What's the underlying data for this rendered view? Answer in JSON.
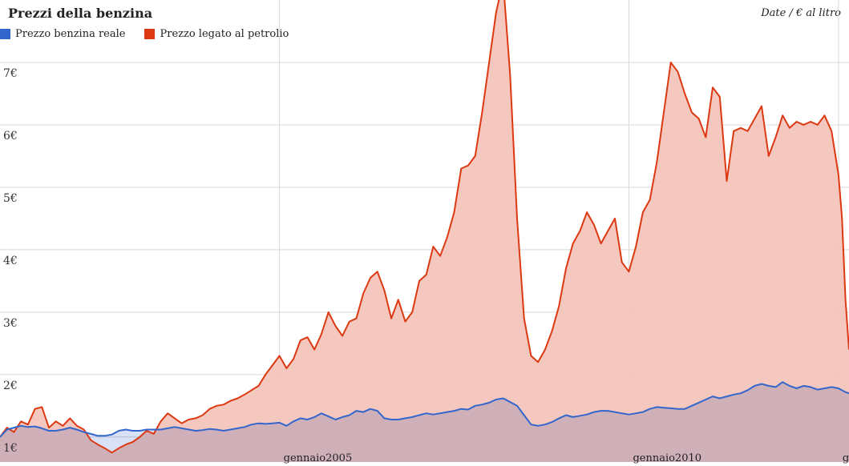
{
  "chart_data": {
    "type": "area",
    "title": "Prezzi della benzina",
    "unit_label": "Date / € al litro",
    "ylim": [
      0.6,
      8.0
    ],
    "xlim": [
      2001.0,
      2013.15
    ],
    "yticks": [
      {
        "value": 1,
        "label": "1€"
      },
      {
        "value": 2,
        "label": "2€"
      },
      {
        "value": 3,
        "label": "3€"
      },
      {
        "value": 4,
        "label": "4€"
      },
      {
        "value": 5,
        "label": "5€"
      },
      {
        "value": 6,
        "label": "6€"
      },
      {
        "value": 7,
        "label": "7€"
      }
    ],
    "xticks": [
      {
        "value": 2005.0,
        "label": "gennaio2005"
      },
      {
        "value": 2010.0,
        "label": "gennaio2010"
      },
      {
        "value": 2013.0,
        "label": "g..."
      }
    ],
    "grid": true,
    "legend_position": "top-left",
    "series": [
      {
        "name": "Prezzo benzina reale",
        "color": "#3366cc",
        "fill": "#b9c8ee",
        "points": [
          [
            2001.0,
            1.0
          ],
          [
            2001.1,
            1.12
          ],
          [
            2001.2,
            1.15
          ],
          [
            2001.3,
            1.18
          ],
          [
            2001.4,
            1.16
          ],
          [
            2001.5,
            1.17
          ],
          [
            2001.6,
            1.14
          ],
          [
            2001.7,
            1.1
          ],
          [
            2001.8,
            1.1
          ],
          [
            2001.9,
            1.12
          ],
          [
            2002.0,
            1.15
          ],
          [
            2002.1,
            1.12
          ],
          [
            2002.2,
            1.08
          ],
          [
            2002.3,
            1.05
          ],
          [
            2002.4,
            1.02
          ],
          [
            2002.5,
            1.02
          ],
          [
            2002.6,
            1.04
          ],
          [
            2002.7,
            1.1
          ],
          [
            2002.8,
            1.12
          ],
          [
            2002.9,
            1.1
          ],
          [
            2003.0,
            1.1
          ],
          [
            2003.1,
            1.12
          ],
          [
            2003.2,
            1.12
          ],
          [
            2003.3,
            1.12
          ],
          [
            2003.4,
            1.14
          ],
          [
            2003.5,
            1.16
          ],
          [
            2003.6,
            1.14
          ],
          [
            2003.7,
            1.12
          ],
          [
            2003.8,
            1.1
          ],
          [
            2003.9,
            1.11
          ],
          [
            2004.0,
            1.13
          ],
          [
            2004.1,
            1.12
          ],
          [
            2004.2,
            1.1
          ],
          [
            2004.3,
            1.12
          ],
          [
            2004.4,
            1.14
          ],
          [
            2004.5,
            1.16
          ],
          [
            2004.6,
            1.2
          ],
          [
            2004.7,
            1.22
          ],
          [
            2004.8,
            1.21
          ],
          [
            2004.9,
            1.22
          ],
          [
            2005.0,
            1.23
          ],
          [
            2005.1,
            1.18
          ],
          [
            2005.2,
            1.25
          ],
          [
            2005.3,
            1.3
          ],
          [
            2005.4,
            1.28
          ],
          [
            2005.5,
            1.32
          ],
          [
            2005.6,
            1.38
          ],
          [
            2005.7,
            1.33
          ],
          [
            2005.8,
            1.28
          ],
          [
            2005.9,
            1.32
          ],
          [
            2006.0,
            1.35
          ],
          [
            2006.1,
            1.42
          ],
          [
            2006.2,
            1.4
          ],
          [
            2006.3,
            1.45
          ],
          [
            2006.4,
            1.42
          ],
          [
            2006.5,
            1.3
          ],
          [
            2006.6,
            1.28
          ],
          [
            2006.7,
            1.28
          ],
          [
            2006.8,
            1.3
          ],
          [
            2006.9,
            1.32
          ],
          [
            2007.0,
            1.35
          ],
          [
            2007.1,
            1.38
          ],
          [
            2007.2,
            1.36
          ],
          [
            2007.3,
            1.38
          ],
          [
            2007.4,
            1.4
          ],
          [
            2007.5,
            1.42
          ],
          [
            2007.6,
            1.45
          ],
          [
            2007.7,
            1.44
          ],
          [
            2007.8,
            1.5
          ],
          [
            2007.9,
            1.52
          ],
          [
            2008.0,
            1.55
          ],
          [
            2008.1,
            1.6
          ],
          [
            2008.2,
            1.62
          ],
          [
            2008.3,
            1.56
          ],
          [
            2008.4,
            1.5
          ],
          [
            2008.5,
            1.35
          ],
          [
            2008.6,
            1.2
          ],
          [
            2008.7,
            1.18
          ],
          [
            2008.8,
            1.2
          ],
          [
            2008.9,
            1.24
          ],
          [
            2009.0,
            1.3
          ],
          [
            2009.1,
            1.35
          ],
          [
            2009.2,
            1.32
          ],
          [
            2009.3,
            1.34
          ],
          [
            2009.4,
            1.36
          ],
          [
            2009.5,
            1.4
          ],
          [
            2009.6,
            1.42
          ],
          [
            2009.7,
            1.42
          ],
          [
            2009.8,
            1.4
          ],
          [
            2009.9,
            1.38
          ],
          [
            2010.0,
            1.36
          ],
          [
            2010.1,
            1.38
          ],
          [
            2010.2,
            1.4
          ],
          [
            2010.3,
            1.45
          ],
          [
            2010.4,
            1.48
          ],
          [
            2010.5,
            1.47
          ],
          [
            2010.6,
            1.46
          ],
          [
            2010.7,
            1.45
          ],
          [
            2010.8,
            1.45
          ],
          [
            2010.9,
            1.5
          ],
          [
            2011.0,
            1.55
          ],
          [
            2011.1,
            1.6
          ],
          [
            2011.2,
            1.65
          ],
          [
            2011.3,
            1.62
          ],
          [
            2011.4,
            1.65
          ],
          [
            2011.5,
            1.68
          ],
          [
            2011.6,
            1.7
          ],
          [
            2011.7,
            1.75
          ],
          [
            2011.8,
            1.82
          ],
          [
            2011.9,
            1.85
          ],
          [
            2012.0,
            1.82
          ],
          [
            2012.1,
            1.8
          ],
          [
            2012.2,
            1.88
          ],
          [
            2012.3,
            1.82
          ],
          [
            2012.4,
            1.78
          ],
          [
            2012.5,
            1.82
          ],
          [
            2012.6,
            1.8
          ],
          [
            2012.7,
            1.76
          ],
          [
            2012.8,
            1.78
          ],
          [
            2012.9,
            1.8
          ],
          [
            2013.0,
            1.78
          ],
          [
            2013.1,
            1.72
          ],
          [
            2013.15,
            1.7
          ]
        ]
      },
      {
        "name": "Prezzo legato al petrolio",
        "color": "#dc3912",
        "fill": "#f4c2b8",
        "points": [
          [
            2001.0,
            1.0
          ],
          [
            2001.1,
            1.15
          ],
          [
            2001.2,
            1.08
          ],
          [
            2001.3,
            1.25
          ],
          [
            2001.4,
            1.2
          ],
          [
            2001.5,
            1.45
          ],
          [
            2001.6,
            1.48
          ],
          [
            2001.7,
            1.15
          ],
          [
            2001.8,
            1.25
          ],
          [
            2001.9,
            1.18
          ],
          [
            2002.0,
            1.3
          ],
          [
            2002.1,
            1.18
          ],
          [
            2002.2,
            1.12
          ],
          [
            2002.3,
            0.95
          ],
          [
            2002.4,
            0.88
          ],
          [
            2002.5,
            0.82
          ],
          [
            2002.6,
            0.75
          ],
          [
            2002.7,
            0.82
          ],
          [
            2002.8,
            0.88
          ],
          [
            2002.9,
            0.92
          ],
          [
            2003.0,
            1.0
          ],
          [
            2003.1,
            1.1
          ],
          [
            2003.2,
            1.05
          ],
          [
            2003.3,
            1.25
          ],
          [
            2003.4,
            1.38
          ],
          [
            2003.5,
            1.3
          ],
          [
            2003.6,
            1.22
          ],
          [
            2003.7,
            1.28
          ],
          [
            2003.8,
            1.3
          ],
          [
            2003.9,
            1.35
          ],
          [
            2004.0,
            1.45
          ],
          [
            2004.1,
            1.5
          ],
          [
            2004.2,
            1.52
          ],
          [
            2004.3,
            1.58
          ],
          [
            2004.4,
            1.62
          ],
          [
            2004.5,
            1.68
          ],
          [
            2004.6,
            1.75
          ],
          [
            2004.7,
            1.82
          ],
          [
            2004.8,
            2.0
          ],
          [
            2004.9,
            2.15
          ],
          [
            2005.0,
            2.3
          ],
          [
            2005.1,
            2.1
          ],
          [
            2005.2,
            2.25
          ],
          [
            2005.3,
            2.55
          ],
          [
            2005.4,
            2.6
          ],
          [
            2005.5,
            2.4
          ],
          [
            2005.6,
            2.65
          ],
          [
            2005.7,
            3.0
          ],
          [
            2005.8,
            2.78
          ],
          [
            2005.9,
            2.62
          ],
          [
            2006.0,
            2.85
          ],
          [
            2006.1,
            2.9
          ],
          [
            2006.2,
            3.3
          ],
          [
            2006.3,
            3.55
          ],
          [
            2006.4,
            3.65
          ],
          [
            2006.5,
            3.35
          ],
          [
            2006.6,
            2.9
          ],
          [
            2006.7,
            3.2
          ],
          [
            2006.8,
            2.85
          ],
          [
            2006.9,
            3.0
          ],
          [
            2007.0,
            3.5
          ],
          [
            2007.1,
            3.6
          ],
          [
            2007.2,
            4.05
          ],
          [
            2007.3,
            3.9
          ],
          [
            2007.4,
            4.2
          ],
          [
            2007.5,
            4.6
          ],
          [
            2007.6,
            5.3
          ],
          [
            2007.7,
            5.35
          ],
          [
            2007.8,
            5.5
          ],
          [
            2007.9,
            6.2
          ],
          [
            2008.0,
            7.0
          ],
          [
            2008.1,
            7.8
          ],
          [
            2008.2,
            8.3
          ],
          [
            2008.3,
            6.8
          ],
          [
            2008.4,
            4.5
          ],
          [
            2008.5,
            2.9
          ],
          [
            2008.6,
            2.3
          ],
          [
            2008.7,
            2.2
          ],
          [
            2008.8,
            2.4
          ],
          [
            2008.9,
            2.7
          ],
          [
            2009.0,
            3.1
          ],
          [
            2009.1,
            3.7
          ],
          [
            2009.2,
            4.1
          ],
          [
            2009.3,
            4.3
          ],
          [
            2009.4,
            4.6
          ],
          [
            2009.5,
            4.4
          ],
          [
            2009.6,
            4.1
          ],
          [
            2009.7,
            4.3
          ],
          [
            2009.8,
            4.5
          ],
          [
            2009.9,
            3.8
          ],
          [
            2010.0,
            3.65
          ],
          [
            2010.1,
            4.05
          ],
          [
            2010.2,
            4.6
          ],
          [
            2010.3,
            4.8
          ],
          [
            2010.4,
            5.4
          ],
          [
            2010.5,
            6.2
          ],
          [
            2010.6,
            7.0
          ],
          [
            2010.7,
            6.85
          ],
          [
            2010.8,
            6.5
          ],
          [
            2010.9,
            6.2
          ],
          [
            2011.0,
            6.1
          ],
          [
            2011.1,
            5.8
          ],
          [
            2011.2,
            6.6
          ],
          [
            2011.3,
            6.45
          ],
          [
            2011.4,
            5.1
          ],
          [
            2011.5,
            5.9
          ],
          [
            2011.6,
            5.95
          ],
          [
            2011.7,
            5.9
          ],
          [
            2011.8,
            6.1
          ],
          [
            2011.9,
            6.3
          ],
          [
            2012.0,
            5.5
          ],
          [
            2012.1,
            5.8
          ],
          [
            2012.2,
            6.15
          ],
          [
            2012.3,
            5.95
          ],
          [
            2012.4,
            6.05
          ],
          [
            2012.5,
            6.0
          ],
          [
            2012.6,
            6.05
          ],
          [
            2012.7,
            6.0
          ],
          [
            2012.8,
            6.15
          ],
          [
            2012.9,
            5.9
          ],
          [
            2013.0,
            5.2
          ],
          [
            2013.05,
            4.5
          ],
          [
            2013.1,
            3.2
          ],
          [
            2013.15,
            2.4
          ]
        ]
      }
    ]
  }
}
